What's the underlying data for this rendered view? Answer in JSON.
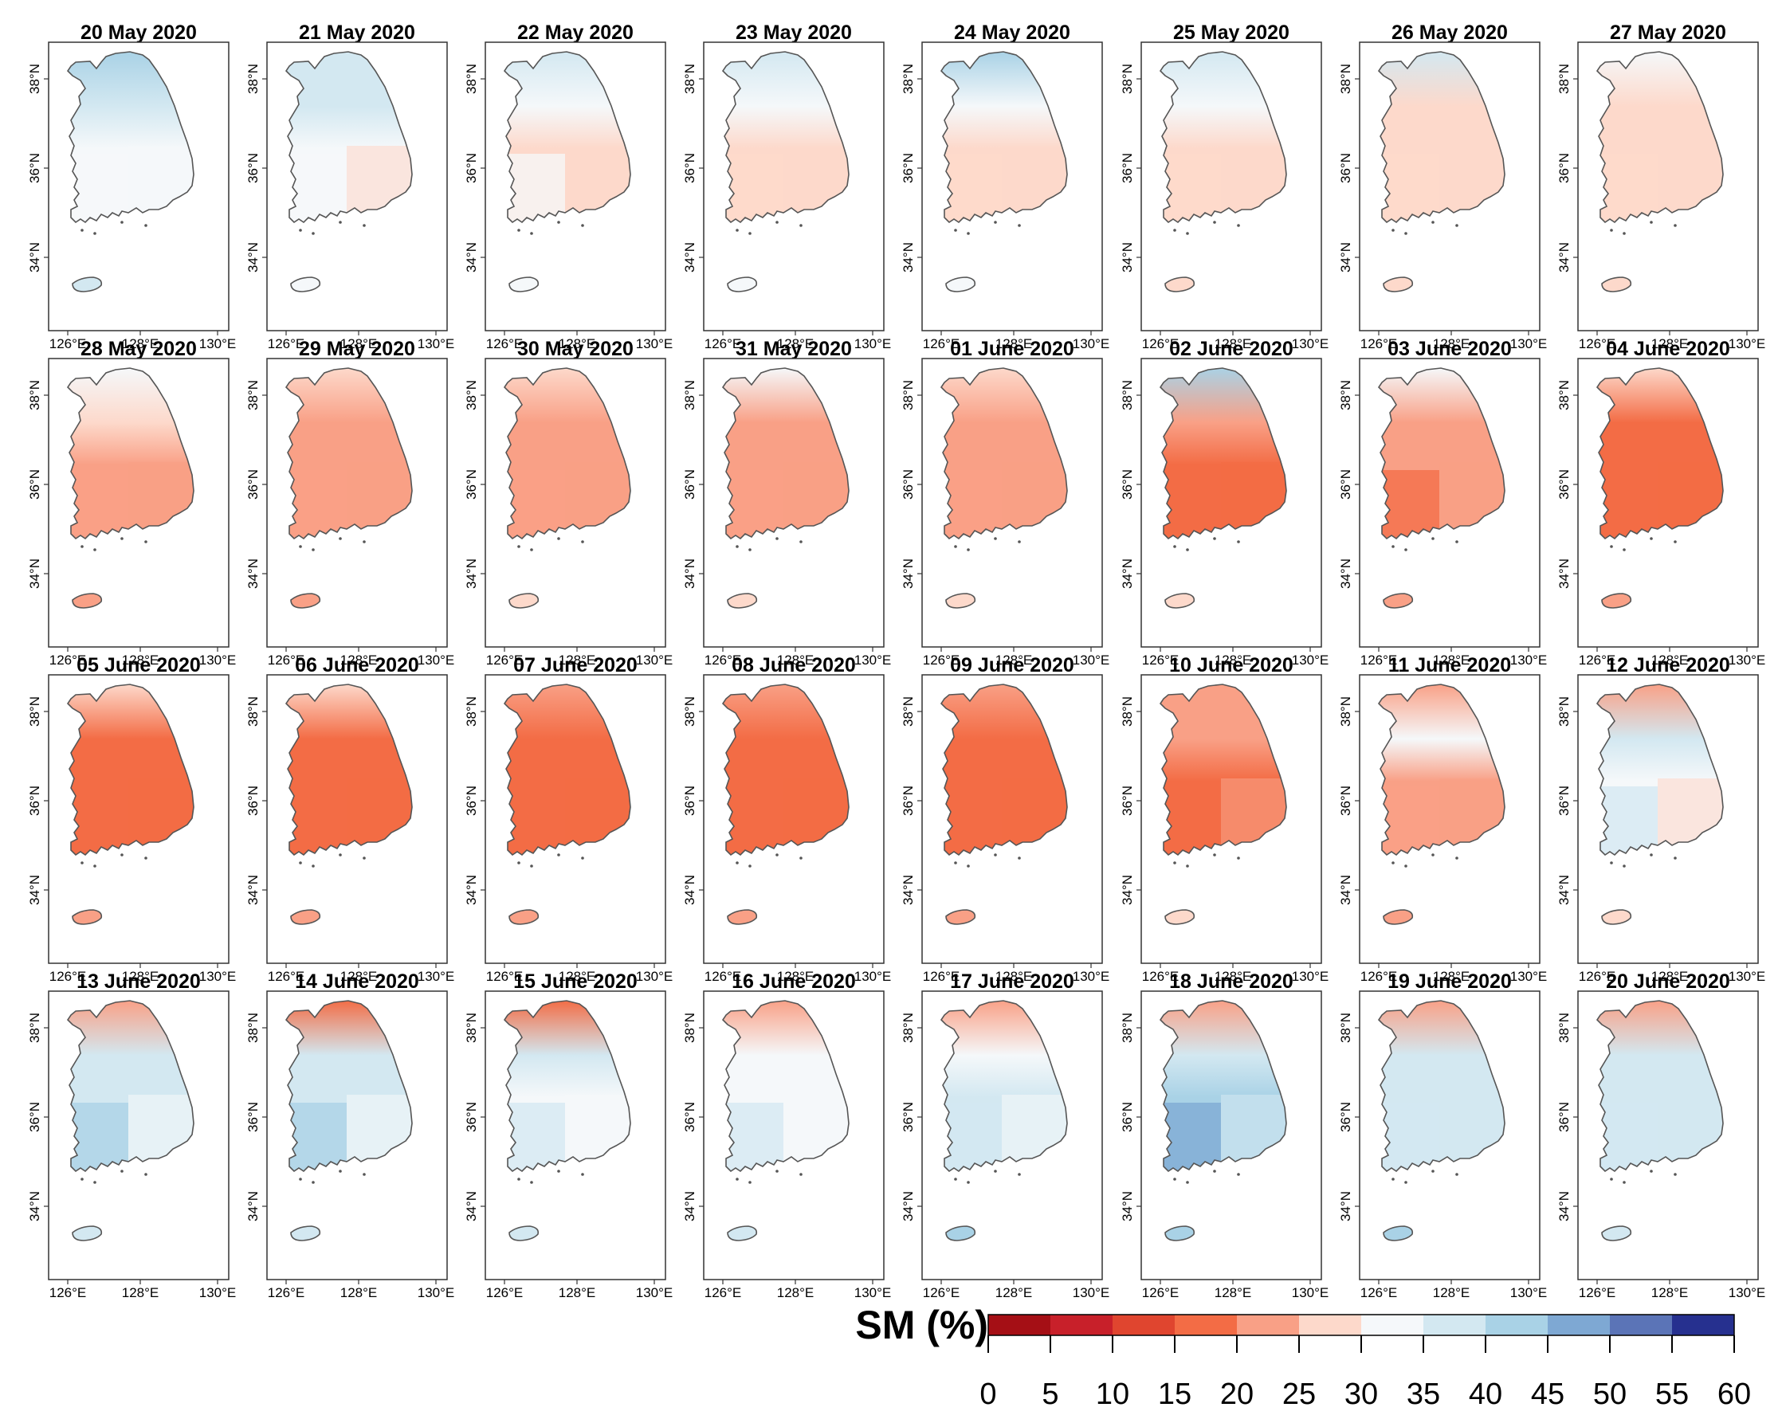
{
  "figure": {
    "panels": [
      {
        "date": "20 May 2020",
        "north": 40,
        "central": 38,
        "southwest": 33,
        "southeast": 30,
        "jeju": 36
      },
      {
        "date": "21 May 2020",
        "north": 38,
        "central": 36,
        "southwest": 32,
        "southeast": 29,
        "jeju": 32
      },
      {
        "date": "22 May 2020",
        "north": 37,
        "central": 34,
        "southwest": 31,
        "southeast": 28,
        "jeju": 31
      },
      {
        "date": "23 May 2020",
        "north": 36,
        "central": 33,
        "southwest": 29,
        "southeast": 28,
        "jeju": 30
      },
      {
        "date": "24 May 2020",
        "north": 42,
        "central": 34,
        "southwest": 27,
        "southeast": 26,
        "jeju": 30
      },
      {
        "date": "25 May 2020",
        "north": 36,
        "central": 30,
        "southwest": 26,
        "southeast": 26,
        "jeju": 28
      },
      {
        "date": "26 May 2020",
        "north": 35,
        "central": 29,
        "southwest": 26,
        "southeast": 27,
        "jeju": 28
      },
      {
        "date": "27 May 2020",
        "north": 34,
        "central": 29,
        "southwest": 26,
        "southeast": 27,
        "jeju": 28
      },
      {
        "date": "28 May 2020",
        "north": 30,
        "central": 25,
        "southwest": 22,
        "southeast": 24,
        "jeju": 24
      },
      {
        "date": "29 May 2020",
        "north": 27,
        "central": 23,
        "southwest": 21,
        "southeast": 22,
        "jeju": 22
      },
      {
        "date": "30 May 2020",
        "north": 28,
        "central": 21,
        "southwest": 20,
        "southeast": 20,
        "jeju": 26
      },
      {
        "date": "31 May 2020",
        "north": 30,
        "central": 24,
        "southwest": 21,
        "southeast": 24,
        "jeju": 27
      },
      {
        "date": "01 June 2020",
        "north": 28,
        "central": 24,
        "southwest": 20,
        "southeast": 24,
        "jeju": 27
      },
      {
        "date": "02 June 2020",
        "north": 40,
        "central": 22,
        "southwest": 19,
        "southeast": 19,
        "jeju": 27
      },
      {
        "date": "03 June 2020",
        "north": 30,
        "central": 20,
        "southwest": 19,
        "southeast": 21,
        "jeju": 24
      },
      {
        "date": "04 June 2020",
        "north": 27,
        "central": 18,
        "southwest": 18,
        "southeast": 19,
        "jeju": 22
      },
      {
        "date": "05 June 2020",
        "north": 28,
        "central": 18,
        "southwest": 17,
        "southeast": 18,
        "jeju": 24
      },
      {
        "date": "06 June 2020",
        "north": 27,
        "central": 17,
        "southwest": 17,
        "southeast": 18,
        "jeju": 24
      },
      {
        "date": "07 June 2020",
        "north": 23,
        "central": 17,
        "southwest": 19,
        "southeast": 18,
        "jeju": 22
      },
      {
        "date": "08 June 2020",
        "north": 22,
        "central": 16,
        "southwest": 18,
        "southeast": 18,
        "jeju": 21
      },
      {
        "date": "09 June 2020",
        "north": 21,
        "central": 16,
        "southwest": 18,
        "southeast": 18,
        "jeju": 20
      },
      {
        "date": "10 June 2020",
        "north": 21,
        "central": 23,
        "southwest": 19,
        "southeast": 20,
        "jeju": 26
      },
      {
        "date": "11 June 2020",
        "north": 21,
        "central": 30,
        "southwest": 21,
        "southeast": 22,
        "jeju": 24
      },
      {
        "date": "12 June 2020",
        "north": 21,
        "central": 35,
        "southwest": 35,
        "southeast": 28,
        "jeju": 27
      },
      {
        "date": "13 June 2020",
        "north": 20,
        "central": 36,
        "southwest": 40,
        "southeast": 31,
        "jeju": 37
      },
      {
        "date": "14 June 2020",
        "north": 19,
        "central": 37,
        "southwest": 42,
        "southeast": 31,
        "jeju": 37
      },
      {
        "date": "15 June 2020",
        "north": 19,
        "central": 35,
        "southwest": 38,
        "southeast": 31,
        "jeju": 36
      },
      {
        "date": "16 June 2020",
        "north": 20,
        "central": 34,
        "southwest": 36,
        "southeast": 30,
        "jeju": 36
      },
      {
        "date": "17 June 2020",
        "north": 21,
        "central": 34,
        "southwest": 38,
        "southeast": 34,
        "jeju": 40
      },
      {
        "date": "18 June 2020",
        "north": 21,
        "central": 37,
        "southwest": 45,
        "southeast": 36,
        "jeju": 44
      },
      {
        "date": "19 June 2020",
        "north": 23,
        "central": 37,
        "southwest": 38,
        "southeast": 37,
        "jeju": 42
      },
      {
        "date": "20 June 2020",
        "north": 22,
        "central": 38,
        "southwest": 37,
        "southeast": 37,
        "jeju": 38
      }
    ],
    "axes": {
      "x_ticks": [
        "126°E",
        "128°E",
        "130°E"
      ],
      "y_ticks": [
        "38°N",
        "36°N",
        "34°N"
      ]
    }
  },
  "legend": {
    "title": "SM (%)",
    "breaks": [
      "0",
      "5",
      "10",
      "15",
      "20",
      "25",
      "30",
      "35",
      "40",
      "45",
      "50",
      "55",
      "60"
    ],
    "colors": [
      "#a50f15",
      "#c8202a",
      "#e0452f",
      "#f36c45",
      "#f9a086",
      "#fdd9cb",
      "#f5f8fa",
      "#d3e8f1",
      "#a9d2e6",
      "#7ea8d3",
      "#5b74b7",
      "#26308f"
    ]
  }
}
